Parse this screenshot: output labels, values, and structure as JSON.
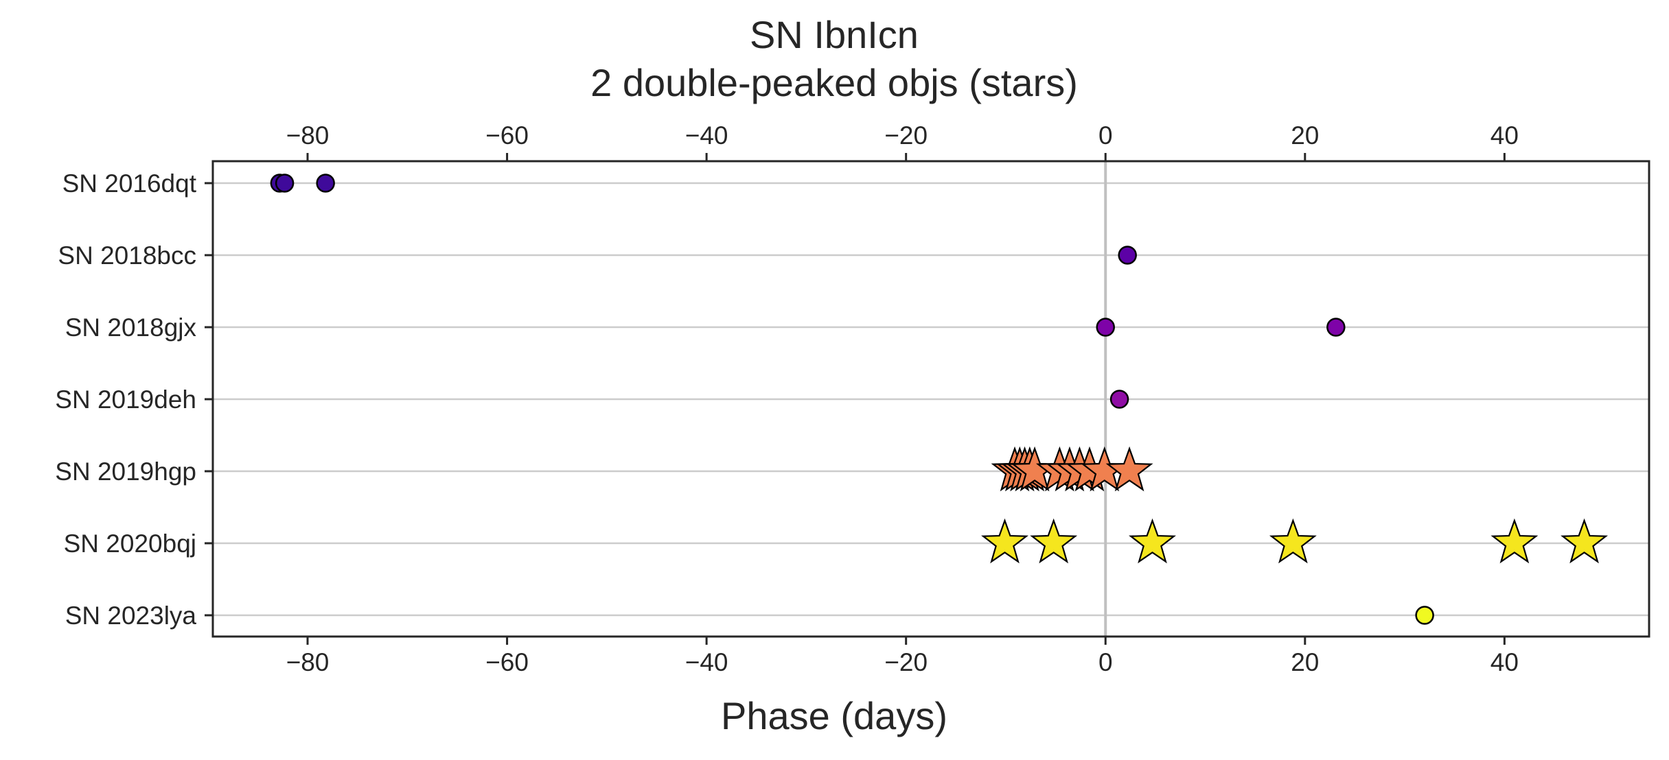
{
  "chart_data": {
    "type": "scatter",
    "title": "SN IbnIcn",
    "subtitle": "2 double-peaked objs (stars)",
    "xlabel": "Phase (days)",
    "ylabel": "",
    "xlim": [
      -89.5,
      54.5
    ],
    "xticks": [
      -80,
      -60,
      -40,
      -20,
      0,
      20,
      40
    ],
    "xtick_labels": [
      "−80",
      "−60",
      "−40",
      "−20",
      "0",
      "20",
      "40"
    ],
    "grid": "horizontal",
    "reference_line_x": 0,
    "categories": [
      "SN 2016dqt",
      "SN 2018bcc",
      "SN 2018gjx",
      "SN 2019deh",
      "SN 2019hgp",
      "SN 2020bqj",
      "SN 2023lya"
    ],
    "series": [
      {
        "category": "SN 2016dqt",
        "marker": "circle",
        "color": "#3f0a9a",
        "x": [
          -82.8,
          -82.3,
          -78.2
        ]
      },
      {
        "category": "SN 2018bcc",
        "marker": "circle",
        "color": "#5c01a6",
        "x": [
          2.2
        ]
      },
      {
        "category": "SN 2018gjx",
        "marker": "circle",
        "color": "#7e03a8",
        "x": [
          0.0,
          23.1
        ]
      },
      {
        "category": "SN 2019deh",
        "marker": "circle",
        "color": "#8f0da4",
        "x": [
          1.4
        ]
      },
      {
        "category": "SN 2019hgp",
        "marker": "star",
        "color": "#f0804f",
        "x": [
          -9.1,
          -8.6,
          -8.1,
          -7.6,
          -7.1,
          -4.6,
          -3.6,
          -2.6,
          -1.6,
          -0.1,
          2.4
        ]
      },
      {
        "category": "SN 2020bqj",
        "marker": "star",
        "color": "#f5e61e",
        "x": [
          -10.1,
          -5.2,
          4.7,
          18.8,
          41.0,
          48.0
        ]
      },
      {
        "category": "SN 2023lya",
        "marker": "circle",
        "color": "#f0f921",
        "x": [
          32.0
        ]
      }
    ],
    "colors": {
      "axis": "#262626",
      "grid": "#cccccc",
      "refline": "#c0c0c0",
      "edge": "#000000"
    }
  }
}
